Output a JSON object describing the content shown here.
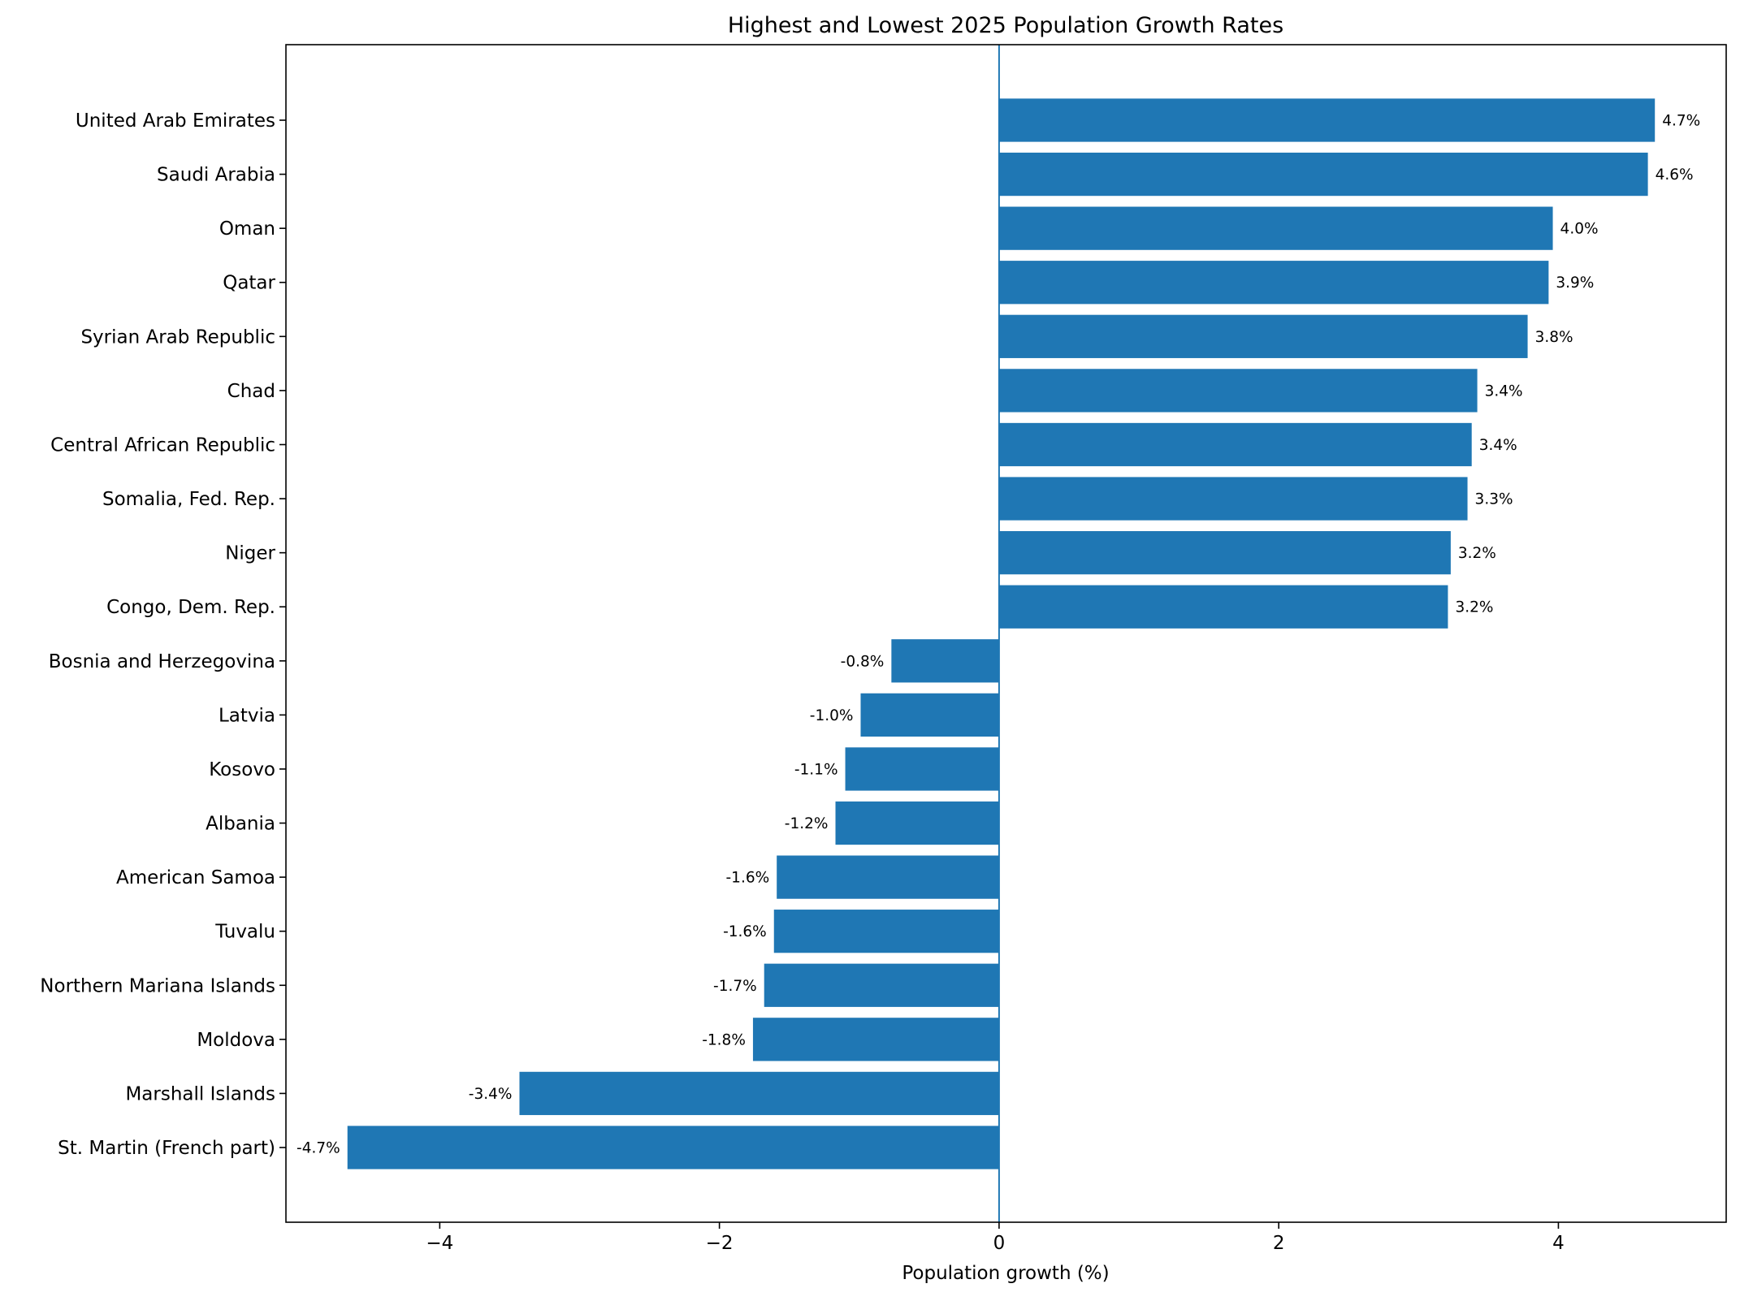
{
  "chart_data": {
    "type": "bar",
    "orientation": "horizontal",
    "title": "Highest and Lowest 2025 Population Growth Rates",
    "xlabel": "Population growth (%)",
    "ylabel": "",
    "xlim": [
      -5.1,
      5.2
    ],
    "xticks": [
      -4,
      -2,
      0,
      2,
      4
    ],
    "xtick_labels": [
      "−4",
      "−2",
      "0",
      "2",
      "4"
    ],
    "grid": false,
    "zero_line": true,
    "bar_color": "#1f77b4",
    "categories": [
      "United Arab Emirates",
      "Saudi Arabia",
      "Oman",
      "Qatar",
      "Syrian Arab Republic",
      "Chad",
      "Central African Republic",
      "Somalia, Fed. Rep.",
      "Niger",
      "Congo, Dem. Rep.",
      "Bosnia and Herzegovina",
      "Latvia",
      "Kosovo",
      "Albania",
      "American Samoa",
      "Tuvalu",
      "Northern Mariana Islands",
      "Moldova",
      "Marshall Islands",
      "St. Martin (French part)"
    ],
    "values": [
      4.69,
      4.64,
      3.96,
      3.93,
      3.78,
      3.42,
      3.38,
      3.35,
      3.23,
      3.21,
      -0.77,
      -0.99,
      -1.1,
      -1.17,
      -1.59,
      -1.61,
      -1.68,
      -1.76,
      -3.43,
      -4.66
    ],
    "data_labels": [
      "4.7%",
      "4.6%",
      "4.0%",
      "3.9%",
      "3.8%",
      "3.4%",
      "3.4%",
      "3.3%",
      "3.2%",
      "3.2%",
      "-0.8%",
      "-1.0%",
      "-1.1%",
      "-1.2%",
      "-1.6%",
      "-1.6%",
      "-1.7%",
      "-1.8%",
      "-3.4%",
      "-4.7%"
    ]
  }
}
